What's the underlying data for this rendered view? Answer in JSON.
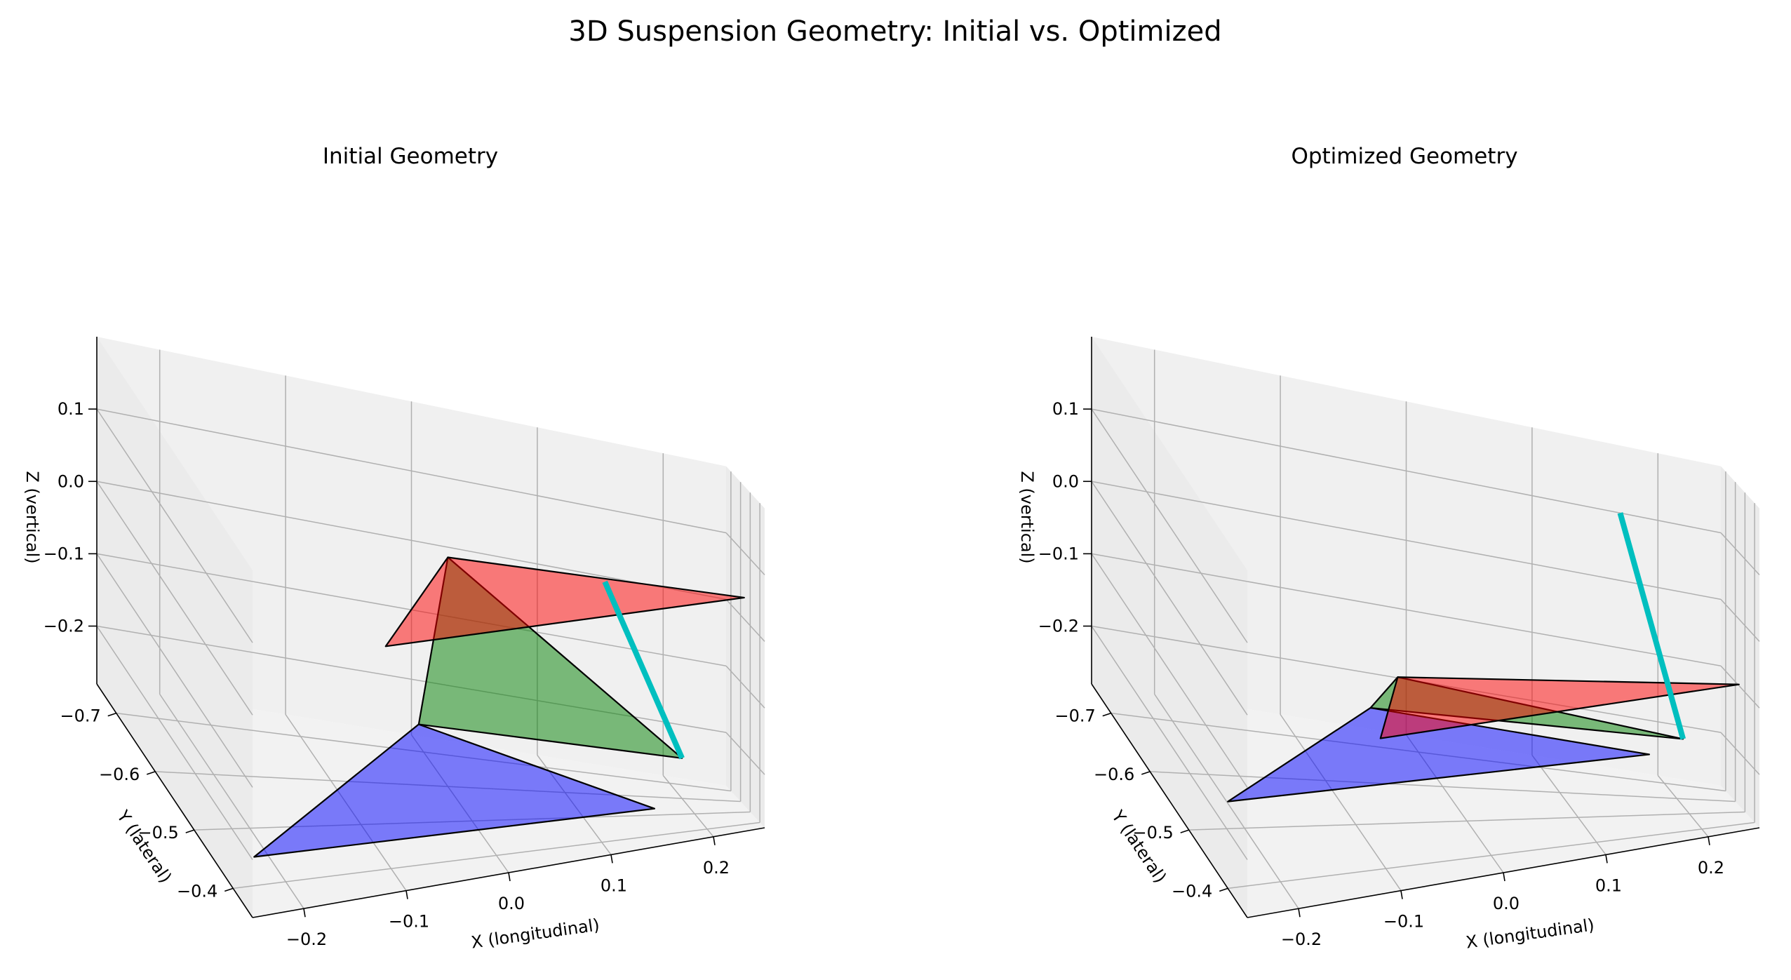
{
  "title": "3D Suspension Geometry: Initial vs. Optimized",
  "colors": {
    "upper_arm": "#ff0000",
    "lower_arm": "#0000ff",
    "upright": "#008000",
    "tie_rod": "#00bfbf",
    "edge": "#000000"
  },
  "chart_data": [
    {
      "type": "3d-surface",
      "title": "Initial Geometry",
      "xlabel": "X (longitudinal)",
      "ylabel": "Y (lateral)",
      "zlabel": "Z (vertical)",
      "xlim": [
        -0.25,
        0.25
      ],
      "ylim": [
        -0.75,
        -0.35
      ],
      "zlim": [
        -0.28,
        0.2
      ],
      "xticks": [
        "−0.2",
        "−0.1",
        "0.0",
        "0.1",
        "0.2"
      ],
      "xtick_values": [
        -0.2,
        -0.1,
        0.0,
        0.1,
        0.2
      ],
      "yticks": [
        "−0.4",
        "−0.5",
        "−0.6",
        "−0.7"
      ],
      "ytick_values": [
        -0.4,
        -0.5,
        -0.6,
        -0.7
      ],
      "zticks": [
        "0.1",
        "0.0",
        "−0.1",
        "−0.2"
      ],
      "ztick_values": [
        0.1,
        0.0,
        -0.1,
        -0.2
      ],
      "polygons": [
        {
          "name": "lower-control-arm",
          "color": "lower_arm",
          "alpha": 0.5,
          "points": [
            [
              -0.23,
              -0.4,
              -0.24
            ],
            [
              0.15,
              -0.4,
              -0.24
            ],
            [
              0.0,
              -0.72,
              -0.25
            ]
          ]
        },
        {
          "name": "upright",
          "color": "upright",
          "alpha": 0.5,
          "points": [
            [
              0.0,
              -0.72,
              -0.25
            ],
            [
              0.0,
              -0.6,
              0.05
            ],
            [
              0.2,
              -0.6,
              -0.22
            ]
          ]
        },
        {
          "name": "upper-control-arm",
          "color": "upper_arm",
          "alpha": 0.5,
          "points": [
            [
              -0.12,
              -0.35,
              0.07
            ],
            [
              0.23,
              -0.35,
              0.07
            ],
            [
              0.0,
              -0.6,
              0.05
            ]
          ]
        }
      ],
      "lines": [
        {
          "name": "tie-rod",
          "color": "tie_rod",
          "points": [
            [
              0.15,
              -0.72,
              0.0
            ],
            [
              0.2,
              -0.6,
              -0.22
            ]
          ]
        }
      ]
    },
    {
      "type": "3d-surface",
      "title": "Optimized Geometry",
      "xlabel": "X (longitudinal)",
      "ylabel": "Y (lateral)",
      "zlabel": "Z (vertical)",
      "xlim": [
        -0.25,
        0.25
      ],
      "ylim": [
        -0.75,
        -0.35
      ],
      "zlim": [
        -0.28,
        0.2
      ],
      "xticks": [
        "−0.2",
        "−0.1",
        "0.0",
        "0.1",
        "0.2"
      ],
      "xtick_values": [
        -0.2,
        -0.1,
        0.0,
        0.1,
        0.2
      ],
      "yticks": [
        "−0.4",
        "−0.5",
        "−0.6",
        "−0.7"
      ],
      "ytick_values": [
        -0.4,
        -0.5,
        -0.6,
        -0.7
      ],
      "zticks": [
        "0.1",
        "0.0",
        "−0.1",
        "−0.2"
      ],
      "ztick_values": [
        0.1,
        0.0,
        -0.1,
        -0.2
      ],
      "polygons": [
        {
          "name": "lower-control-arm",
          "color": "lower_arm",
          "alpha": 0.5,
          "points": [
            [
              -0.25,
              -0.4,
              -0.16
            ],
            [
              0.15,
              -0.4,
              -0.16
            ],
            [
              -0.05,
              -0.65,
              -0.2
            ]
          ]
        },
        {
          "name": "upright",
          "color": "upright",
          "alpha": 0.5,
          "points": [
            [
              -0.05,
              -0.65,
              -0.2
            ],
            [
              -0.05,
              -0.55,
              -0.1
            ],
            [
              0.2,
              -0.55,
              -0.18
            ]
          ]
        },
        {
          "name": "upper-control-arm",
          "color": "upper_arm",
          "alpha": 0.5,
          "points": [
            [
              -0.12,
              -0.35,
              -0.06
            ],
            [
              0.23,
              -0.35,
              -0.06
            ],
            [
              -0.05,
              -0.55,
              -0.1
            ]
          ]
        }
      ],
      "lines": [
        {
          "name": "tie-rod",
          "color": "tie_rod",
          "points": [
            [
              0.17,
              -0.75,
              0.1
            ],
            [
              0.2,
              -0.55,
              -0.18
            ]
          ]
        }
      ]
    }
  ]
}
